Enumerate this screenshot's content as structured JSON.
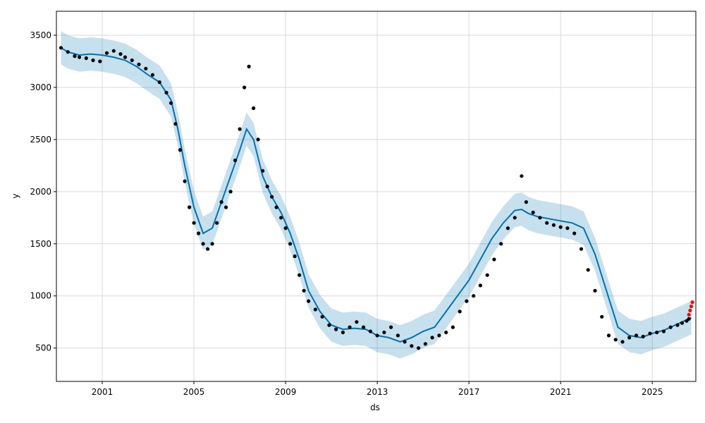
{
  "chart_data": {
    "type": "scatter",
    "title": "",
    "xlabel": "ds",
    "ylabel": "y",
    "xlim": [
      1999.0,
      2026.9
    ],
    "ylim": [
      180,
      3730
    ],
    "x_ticks": [
      2001,
      2005,
      2009,
      2013,
      2017,
      2021,
      2025
    ],
    "y_ticks": [
      500,
      1000,
      1500,
      2000,
      2500,
      3000,
      3500
    ],
    "grid": true,
    "colors": {
      "observed": "#000000",
      "forecast_line": "#0072B2",
      "interval_band": "#0072B2",
      "recent_points": "#ff0000"
    },
    "series": [
      {
        "points": [
          [
            1999.2,
            3380
          ],
          [
            1999.5,
            3340
          ],
          [
            1999.8,
            3300
          ],
          [
            2000.0,
            3290
          ],
          [
            2000.3,
            3280
          ],
          [
            2000.6,
            3260
          ],
          [
            2000.9,
            3250
          ],
          [
            2001.2,
            3330
          ],
          [
            2001.5,
            3350
          ],
          [
            2001.8,
            3320
          ],
          [
            2002.0,
            3290
          ],
          [
            2002.3,
            3260
          ],
          [
            2002.6,
            3220
          ],
          [
            2002.9,
            3180
          ],
          [
            2003.2,
            3120
          ],
          [
            2003.5,
            3050
          ],
          [
            2003.8,
            2950
          ],
          [
            2004.0,
            2850
          ],
          [
            2004.2,
            2650
          ],
          [
            2004.4,
            2400
          ],
          [
            2004.6,
            2100
          ],
          [
            2004.8,
            1850
          ],
          [
            2005.0,
            1700
          ],
          [
            2005.2,
            1600
          ],
          [
            2005.4,
            1500
          ],
          [
            2005.6,
            1450
          ],
          [
            2005.8,
            1500
          ],
          [
            2006.0,
            1700
          ],
          [
            2006.2,
            1900
          ],
          [
            2006.4,
            1850
          ],
          [
            2006.6,
            2000
          ],
          [
            2006.8,
            2300
          ],
          [
            2007.0,
            2600
          ],
          [
            2007.2,
            3000
          ],
          [
            2007.4,
            3200
          ],
          [
            2007.6,
            2800
          ],
          [
            2007.8,
            2500
          ],
          [
            2008.0,
            2200
          ],
          [
            2008.2,
            2050
          ],
          [
            2008.4,
            1950
          ],
          [
            2008.6,
            1850
          ],
          [
            2008.8,
            1750
          ],
          [
            2009.0,
            1650
          ],
          [
            2009.2,
            1500
          ],
          [
            2009.4,
            1380
          ],
          [
            2009.6,
            1200
          ],
          [
            2009.8,
            1050
          ],
          [
            2010.0,
            950
          ],
          [
            2010.3,
            870
          ],
          [
            2010.6,
            800
          ],
          [
            2010.9,
            720
          ],
          [
            2011.2,
            680
          ],
          [
            2011.5,
            650
          ],
          [
            2011.8,
            700
          ],
          [
            2012.1,
            750
          ],
          [
            2012.4,
            700
          ],
          [
            2012.7,
            660
          ],
          [
            2013.0,
            620
          ],
          [
            2013.3,
            650
          ],
          [
            2013.6,
            700
          ],
          [
            2013.9,
            620
          ],
          [
            2014.2,
            560
          ],
          [
            2014.5,
            520
          ],
          [
            2014.8,
            500
          ],
          [
            2015.1,
            540
          ],
          [
            2015.4,
            600
          ],
          [
            2015.7,
            620
          ],
          [
            2016.0,
            650
          ],
          [
            2016.3,
            700
          ],
          [
            2016.6,
            850
          ],
          [
            2016.9,
            950
          ],
          [
            2017.2,
            1000
          ],
          [
            2017.5,
            1100
          ],
          [
            2017.8,
            1200
          ],
          [
            2018.1,
            1350
          ],
          [
            2018.4,
            1500
          ],
          [
            2018.7,
            1650
          ],
          [
            2019.0,
            1750
          ],
          [
            2019.3,
            2150
          ],
          [
            2019.5,
            1900
          ],
          [
            2019.8,
            1800
          ],
          [
            2020.1,
            1750
          ],
          [
            2020.4,
            1700
          ],
          [
            2020.7,
            1680
          ],
          [
            2021.0,
            1660
          ],
          [
            2021.3,
            1650
          ],
          [
            2021.6,
            1600
          ],
          [
            2021.9,
            1450
          ],
          [
            2022.2,
            1250
          ],
          [
            2022.5,
            1050
          ],
          [
            2022.8,
            800
          ],
          [
            2023.1,
            620
          ],
          [
            2023.4,
            580
          ],
          [
            2023.7,
            560
          ],
          [
            2024.0,
            600
          ],
          [
            2024.3,
            620
          ],
          [
            2024.6,
            610
          ],
          [
            2024.9,
            640
          ],
          [
            2025.2,
            650
          ],
          [
            2025.5,
            660
          ],
          [
            2025.8,
            700
          ],
          [
            2026.1,
            720
          ],
          [
            2026.3,
            740
          ],
          [
            2026.5,
            760
          ],
          [
            2026.6,
            780
          ]
        ]
      },
      {
        "points": [
          [
            2026.6,
            820
          ],
          [
            2026.65,
            860
          ],
          [
            2026.7,
            900
          ],
          [
            2026.75,
            940
          ]
        ]
      }
    ],
    "forecast": {
      "x": [
        1999.2,
        1999.5,
        2000.0,
        2000.5,
        2001.0,
        2001.5,
        2002.0,
        2002.5,
        2003.0,
        2003.5,
        2004.0,
        2004.3,
        2004.6,
        2005.0,
        2005.4,
        2005.8,
        2006.2,
        2006.6,
        2007.0,
        2007.3,
        2007.6,
        2008.0,
        2008.4,
        2008.8,
        2009.2,
        2009.6,
        2010.0,
        2010.5,
        2011.0,
        2011.5,
        2012.0,
        2012.5,
        2013.0,
        2013.5,
        2014.0,
        2014.5,
        2015.0,
        2015.5,
        2016.0,
        2016.5,
        2017.0,
        2017.5,
        2018.0,
        2018.5,
        2019.0,
        2019.3,
        2019.6,
        2020.0,
        2020.5,
        2021.0,
        2021.5,
        2022.0,
        2022.5,
        2023.0,
        2023.5,
        2024.0,
        2024.5,
        2025.0,
        2025.5,
        2026.0,
        2026.4,
        2026.7
      ],
      "yhat": [
        3380,
        3340,
        3310,
        3320,
        3310,
        3290,
        3260,
        3200,
        3120,
        3050,
        2880,
        2600,
        2250,
        1850,
        1600,
        1650,
        1900,
        2150,
        2400,
        2600,
        2500,
        2150,
        1950,
        1800,
        1600,
        1350,
        1050,
        850,
        720,
        680,
        690,
        680,
        620,
        600,
        560,
        600,
        660,
        700,
        850,
        1000,
        1150,
        1350,
        1550,
        1700,
        1820,
        1830,
        1790,
        1760,
        1740,
        1720,
        1700,
        1650,
        1400,
        1050,
        700,
        620,
        600,
        640,
        670,
        720,
        760,
        790
      ],
      "band": 160
    }
  }
}
